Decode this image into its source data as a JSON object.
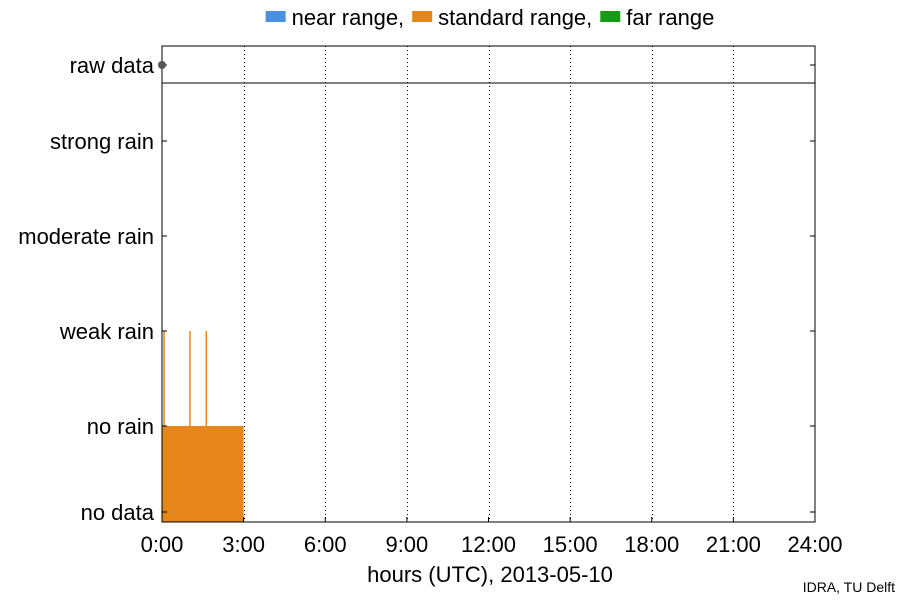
{
  "chart_data": {
    "type": "bar",
    "xlabel": "hours (UTC), 2013-05-10",
    "x_ticks": [
      "0:00",
      "3:00",
      "6:00",
      "9:00",
      "12:00",
      "15:00",
      "18:00",
      "21:00",
      "24:00"
    ],
    "xlim": [
      0,
      24
    ],
    "y_categories": [
      "no data",
      "no rain",
      "weak rain",
      "moderate rain",
      "strong rain"
    ],
    "raw_data_label": "raw data",
    "raw_data_points": [
      0
    ],
    "legend": [
      {
        "label": "near range,",
        "color": "#4a90e2"
      },
      {
        "label": "standard range,",
        "color": "#e6861a"
      },
      {
        "label": "far range",
        "color": "#159b15"
      }
    ],
    "legend_position": "top",
    "grid": "vertical dotted at each x tick",
    "series": [
      {
        "name": "standard range",
        "color": "#e6861a",
        "segments": [
          {
            "start": 0.0,
            "end": 3.0,
            "level": 1
          },
          {
            "start": 0.05,
            "end": 0.1,
            "level": 2
          },
          {
            "start": 1.0,
            "end": 1.05,
            "level": 2
          },
          {
            "start": 1.6,
            "end": 1.65,
            "level": 2
          }
        ]
      }
    ],
    "credit": "IDRA, TU Delft"
  }
}
